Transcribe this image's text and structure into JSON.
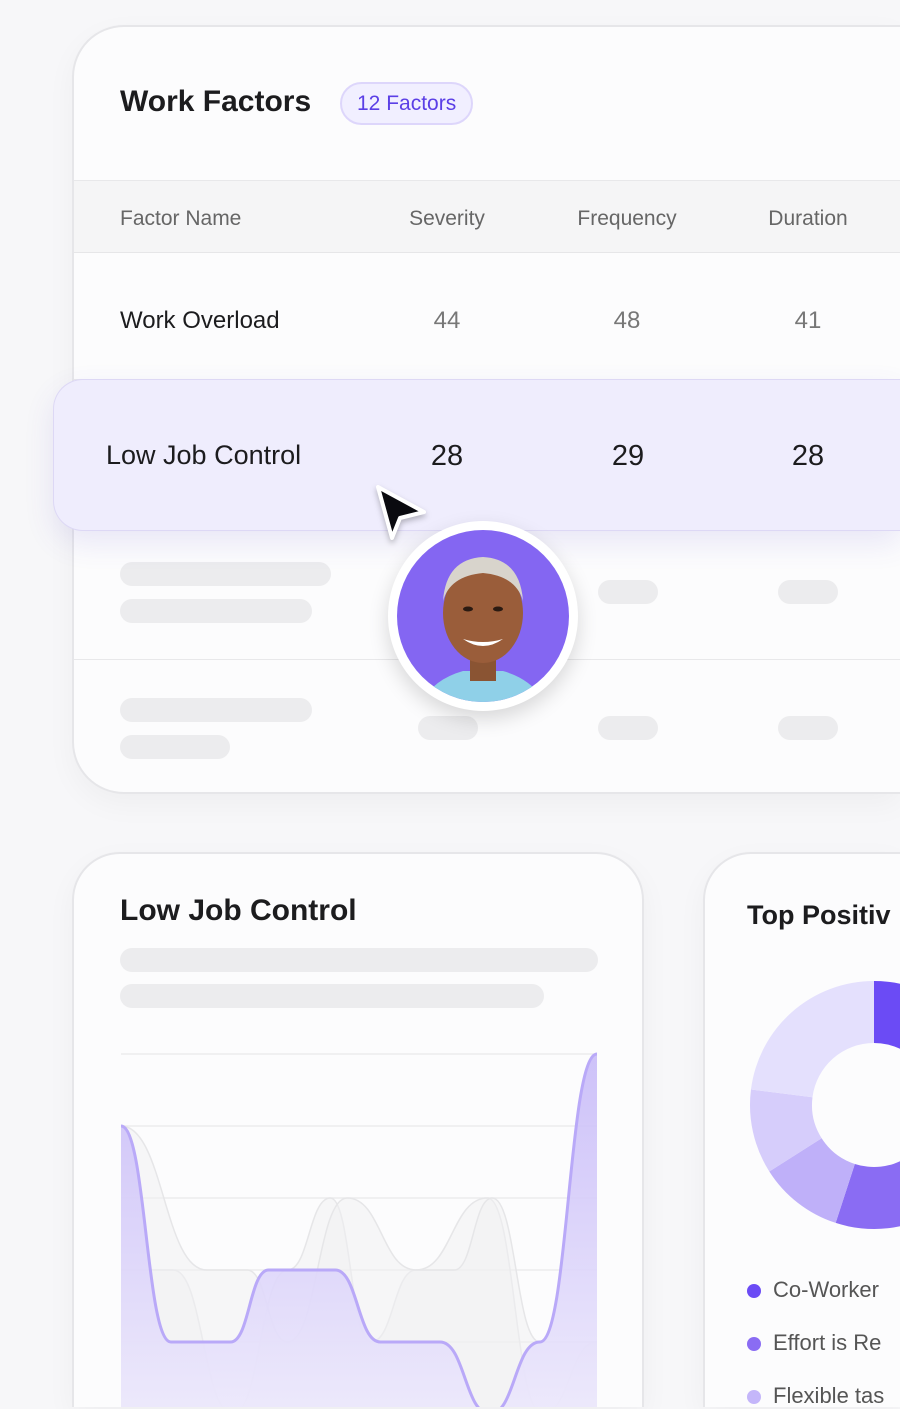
{
  "factors_card": {
    "title": "Work Factors",
    "badge": "12 Factors",
    "columns": [
      "Factor Name",
      "Severity",
      "Frequency",
      "Duration"
    ],
    "rows": [
      {
        "name": "Work Overload",
        "severity": "44",
        "frequency": "48",
        "duration": "41"
      },
      {
        "name": "Low Job Control",
        "severity": "28",
        "frequency": "29",
        "duration": "28",
        "highlighted": true
      }
    ]
  },
  "colors": {
    "accent": "#6b4bf5",
    "badge_text": "#5b3fe6",
    "highlight_row": "#efedfd",
    "avatar_bg": "#8466f2"
  },
  "detail_card": {
    "title": "Low Job Control",
    "chart_data": {
      "type": "area",
      "title": "",
      "xlabel": "",
      "ylabel": "",
      "grid": true,
      "ylim": [
        0,
        5
      ],
      "xlim": [
        0,
        20
      ],
      "series": [
        {
          "color": "#b9a9f8",
          "x": [
            0,
            2.1,
            4.6,
            6.2,
            9,
            10.9,
            13.4,
            15.5,
            17.6,
            20
          ],
          "y": [
            4,
            1,
            1,
            2,
            2,
            1,
            1,
            0,
            1,
            5
          ]
        },
        {
          "color": "#e6e6e8",
          "x": [
            0,
            3.6,
            5.3,
            7,
            9.5,
            12.4,
            14,
            15.6,
            17.6,
            20
          ],
          "y": [
            4,
            2,
            2,
            1,
            3,
            2,
            2,
            3,
            1,
            1
          ]
        },
        {
          "color": "#e6e6e8",
          "x": [
            0,
            2.2,
            4.7,
            7,
            8.8,
            10.5,
            12.4,
            15.4,
            17.7,
            20
          ],
          "y": [
            2,
            2,
            0,
            2,
            3,
            1,
            2,
            3,
            0,
            1
          ]
        }
      ]
    }
  },
  "positive_card": {
    "title": "Top Positiv",
    "chart_data": {
      "type": "pie",
      "donut": true,
      "values": [
        28,
        27,
        11,
        11,
        23
      ],
      "colors": [
        "#6b4bf5",
        "#8a6cf3",
        "#bfb0f9",
        "#d6cdfb",
        "#e4e0fd"
      ]
    },
    "legend": [
      {
        "label": "Co-Worker",
        "color": "#6b4bf5"
      },
      {
        "label": "Effort is Re",
        "color": "#8a6cf3"
      },
      {
        "label": "Flexible tas",
        "color": "#c4b6fa"
      }
    ]
  }
}
